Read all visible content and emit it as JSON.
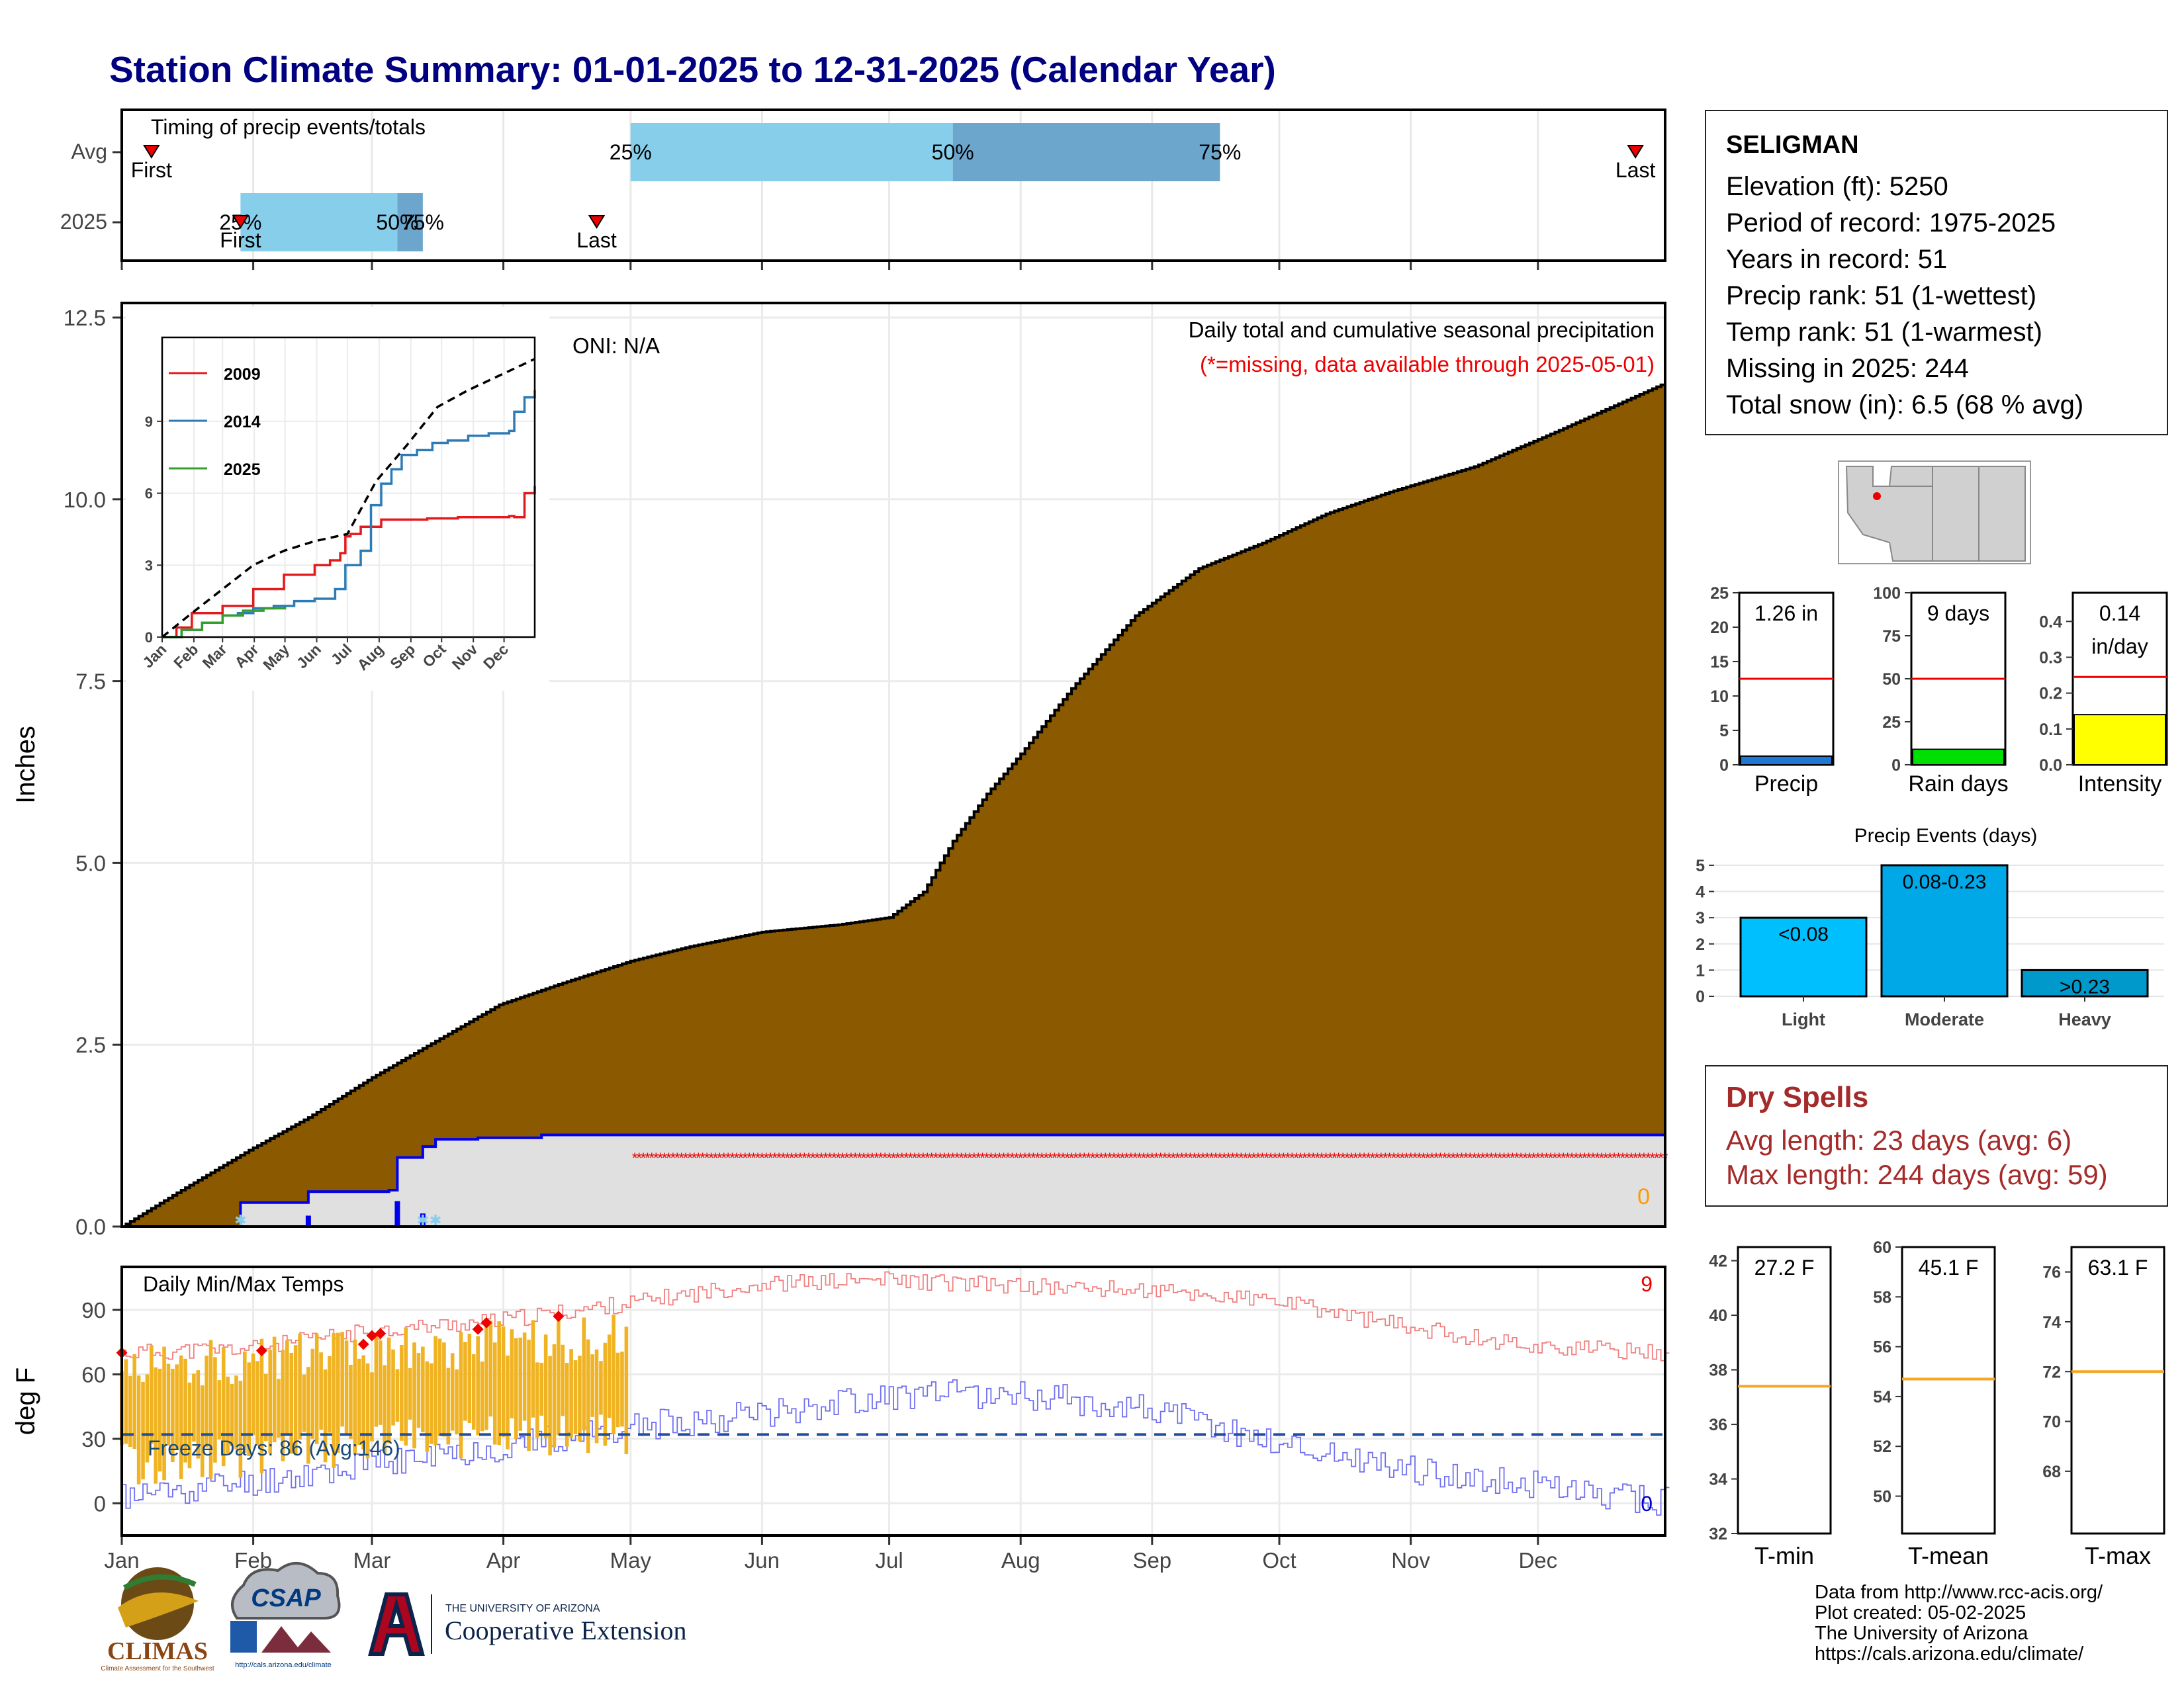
{
  "title": "Station Climate Summary: 01-01-2025 to 12-31-2025 (Calendar Year)",
  "timing_panel": {
    "label": "Timing of precip events/totals",
    "rows": [
      "Avg",
      "2025"
    ],
    "avg": {
      "first_day": 8,
      "last_day": 358,
      "q25_day": 121,
      "q50_day": 197,
      "q75_day": 260,
      "first_label": "First",
      "last_label": "Last",
      "q25_label": "25%",
      "q50_label": "50%",
      "q75_label": "75%"
    },
    "current": {
      "first_day": 29,
      "last_day": 113,
      "q25_day": 29,
      "q50_day": 66,
      "q75_day": 72,
      "first_label": "First",
      "last_label": "Last",
      "q25_label": "25%",
      "q50_label": "50%",
      "q75_label": "75%"
    }
  },
  "precip_panel": {
    "ylabel": "Inches",
    "ytick_labels": [
      "0.0",
      "2.5",
      "5.0",
      "7.5",
      "10.0",
      "12.5"
    ],
    "oni_label": "ONI: N/A",
    "subtitle": "Daily total and cumulative seasonal precipitation",
    "missing_note": "(*=missing, data available through 2025-05-01)",
    "snow_count": "0"
  },
  "temp_panel": {
    "ylabel": "deg F",
    "ytick_labels": [
      "0",
      "30",
      "60",
      "90"
    ],
    "title": "Daily Min/Max Temps",
    "max_count": "9",
    "min_count": "0",
    "freeze_label": "Freeze Days: 86 (Avg:146)"
  },
  "month_labels": [
    "Jan",
    "Feb",
    "Mar",
    "Apr",
    "May",
    "Jun",
    "Jul",
    "Aug",
    "Sep",
    "Oct",
    "Nov",
    "Dec"
  ],
  "inset": {
    "legend": [
      "2009",
      "2014",
      "2025"
    ],
    "ytick_labels": [
      "0",
      "3",
      "6",
      "9"
    ],
    "month_labels": [
      "Jan",
      "Feb",
      "Mar",
      "Apr",
      "May",
      "Jun",
      "Jul",
      "Aug",
      "Sep",
      "Oct",
      "Nov",
      "Dec"
    ]
  },
  "station": {
    "name": "SELIGMAN",
    "elevation": "Elevation (ft): 5250",
    "period": "Period of record: 1975-2025",
    "years": "Years in record: 51",
    "precip_rank": "Precip rank: 51 (1-wettest)",
    "temp_rank": "Temp rank: 51 (1-warmest)",
    "missing": "Missing in 2025: 244",
    "snow": "Total snow (in): 6.5 (68 % avg)"
  },
  "mini_bars": {
    "precip": {
      "label": "Precip",
      "value_label": "1.26 in",
      "value": 1.26,
      "avg": 12.5,
      "ymax": 25,
      "ticks": [
        "0",
        "5",
        "10",
        "15",
        "20",
        "25"
      ],
      "color": "#1f77d4"
    },
    "rain_days": {
      "label": "Rain days",
      "value_label": "9 days",
      "value": 9,
      "avg": 50,
      "ymax": 100,
      "ticks": [
        "0",
        "25",
        "50",
        "75",
        "100"
      ],
      "color": "#00e000"
    },
    "intensity": {
      "label": "Intensity",
      "value_label": "0.14",
      "unit_label": "in/day",
      "value": 0.14,
      "avg": 0.245,
      "ymax": 0.48,
      "ticks": [
        "0.0",
        "0.1",
        "0.2",
        "0.3",
        "0.4"
      ],
      "color": "#ffff00"
    }
  },
  "precip_events": {
    "title": "Precip Events (days)",
    "categories": [
      "Light",
      "Moderate",
      "Heavy"
    ],
    "range_labels": [
      "<0.08",
      "0.08-0.23",
      ">0.23"
    ],
    "values": [
      3,
      5,
      1
    ],
    "ticks": [
      "0",
      "1",
      "2",
      "3",
      "4",
      "5"
    ],
    "colors": [
      "#00bfff",
      "#00a8e8",
      "#0099cc"
    ]
  },
  "dry_spells": {
    "title": "Dry Spells",
    "avg_length": "Avg length: 23 days (avg: 6)",
    "max_length": "Max length: 244 days (avg: 59)"
  },
  "temp_bars": {
    "tmin": {
      "label": "T-min",
      "value_label": "27.2 F",
      "avg": 37.4,
      "ymin": 32,
      "ymax": 42.5,
      "ticks": [
        "32",
        "34",
        "36",
        "38",
        "40",
        "42"
      ]
    },
    "tmean": {
      "label": "T-mean",
      "value_label": "45.1 F",
      "avg": 54.7,
      "ymin": 48.5,
      "ymax": 60,
      "ticks": [
        "50",
        "52",
        "54",
        "56",
        "58",
        "60"
      ]
    },
    "tmax": {
      "label": "T-max",
      "value_label": "63.1 F",
      "avg": 72,
      "ymin": 65.5,
      "ymax": 77,
      "ticks": [
        "68",
        "70",
        "72",
        "74",
        "76"
      ]
    }
  },
  "credits": [
    "Data from http://www.rcc-acis.org/",
    "Plot created: 05-02-2025",
    "The University of Arizona",
    "https://cals.arizona.edu/climate/"
  ],
  "logos": {
    "climas": "CLIMAS",
    "climas_sub": "Climate Assessment for the Southwest",
    "csap": "CSAP",
    "csap_url": "http://cals.arizona.edu/climate",
    "ua_small": "THE UNIVERSITY OF ARIZONA",
    "ua_big": "Cooperative Extension"
  },
  "chart_data": [
    {
      "type": "area",
      "title": "Daily total and cumulative seasonal precipitation",
      "ylabel": "Inches",
      "ylim": [
        0,
        12.7
      ],
      "x_units": "day of year",
      "avg_cumulative": {
        "x": [
          1,
          15,
          31,
          45,
          60,
          75,
          90,
          105,
          121,
          135,
          152,
          170,
          182,
          190,
          197,
          205,
          213,
          225,
          240,
          255,
          270,
          285,
          300,
          320,
          340,
          365
        ],
        "y": [
          0,
          0.5,
          1.05,
          1.5,
          2.05,
          2.55,
          3.05,
          3.35,
          3.65,
          3.85,
          4.05,
          4.15,
          4.25,
          4.6,
          5.3,
          5.95,
          6.5,
          7.4,
          8.4,
          9.05,
          9.4,
          9.8,
          10.1,
          10.45,
          10.95,
          11.6
        ]
      },
      "current_cumulative": {
        "x": [
          1,
          28,
          29,
          45,
          64,
          66,
          72,
          75,
          85,
          100,
          121
        ],
        "y": [
          0,
          0,
          0.33,
          0.48,
          0.5,
          0.95,
          1.1,
          1.2,
          1.22,
          1.26,
          1.26
        ]
      },
      "daily_bars": [
        {
          "x": 45,
          "y": 0.15
        },
        {
          "x": 66,
          "y": 0.35
        },
        {
          "x": 72,
          "y": 0.18
        }
      ],
      "missing_from_day": 122
    },
    {
      "type": "line",
      "title": "Daily Min/Max Temps",
      "ylabel": "deg F",
      "ylim": [
        -15,
        110
      ],
      "freeze_line": 32,
      "max_curve": {
        "x": [
          1,
          31,
          59,
          90,
          120,
          151,
          181,
          212,
          243,
          273,
          304,
          334,
          365
        ],
        "y": [
          70,
          72,
          80,
          85,
          93,
          102,
          104,
          101,
          99,
          94,
          82,
          73,
          70
        ]
      },
      "min_curve": {
        "x": [
          1,
          31,
          59,
          90,
          120,
          151,
          181,
          212,
          243,
          273,
          304,
          334,
          365
        ],
        "y": [
          3,
          10,
          18,
          26,
          35,
          42,
          50,
          51,
          44,
          28,
          16,
          8,
          1
        ]
      }
    },
    {
      "type": "line",
      "title": "inset cumulative",
      "ylim": [
        0,
        12.5
      ],
      "series": [
        {
          "name": "2009",
          "color": "#e31a1c",
          "x": [
            1,
            15,
            30,
            45,
            60,
            75,
            90,
            105,
            120,
            135,
            150,
            165,
            175,
            180,
            185,
            195,
            200,
            215,
            230,
            260,
            290,
            330,
            340,
            345,
            355,
            365
          ],
          "y": [
            0,
            0.4,
            1.0,
            1.0,
            1.3,
            1.3,
            2.0,
            2.0,
            2.6,
            2.6,
            3.0,
            3.2,
            3.5,
            4.2,
            4.3,
            4.6,
            4.6,
            4.9,
            4.9,
            4.95,
            5.0,
            5.0,
            5.05,
            5.0,
            6.0,
            6.3
          ]
        },
        {
          "name": "2014",
          "color": "#2c7bb6",
          "x": [
            1,
            20,
            40,
            60,
            75,
            90,
            110,
            130,
            150,
            170,
            180,
            195,
            205,
            215,
            225,
            235,
            250,
            265,
            280,
            300,
            320,
            340,
            345,
            355,
            365
          ],
          "y": [
            0,
            0.3,
            0.6,
            0.9,
            1.0,
            1.2,
            1.3,
            1.5,
            1.6,
            2.0,
            3.0,
            3.6,
            5.5,
            6.4,
            7.0,
            7.6,
            7.8,
            8.1,
            8.2,
            8.4,
            8.5,
            8.6,
            9.4,
            10.0,
            10.3
          ]
        },
        {
          "name": "2025",
          "color": "#33a02c",
          "x": [
            1,
            20,
            40,
            60,
            80,
            100,
            121
          ],
          "y": [
            0,
            0.3,
            0.6,
            0.9,
            1.1,
            1.2,
            1.26
          ]
        },
        {
          "name": "Avg",
          "color": "#000000",
          "dashed": true,
          "x": [
            1,
            30,
            60,
            90,
            120,
            150,
            182,
            210,
            240,
            270,
            300,
            330,
            365
          ],
          "y": [
            0,
            1.0,
            2.0,
            3.0,
            3.6,
            4.0,
            4.3,
            6.5,
            8.0,
            9.6,
            10.3,
            10.9,
            11.6
          ]
        }
      ]
    },
    {
      "type": "bar",
      "title": "Precip Events (days)",
      "categories": [
        "Light",
        "Moderate",
        "Heavy"
      ],
      "values": [
        3,
        5,
        1
      ],
      "ylim": [
        0,
        5.2
      ]
    }
  ]
}
